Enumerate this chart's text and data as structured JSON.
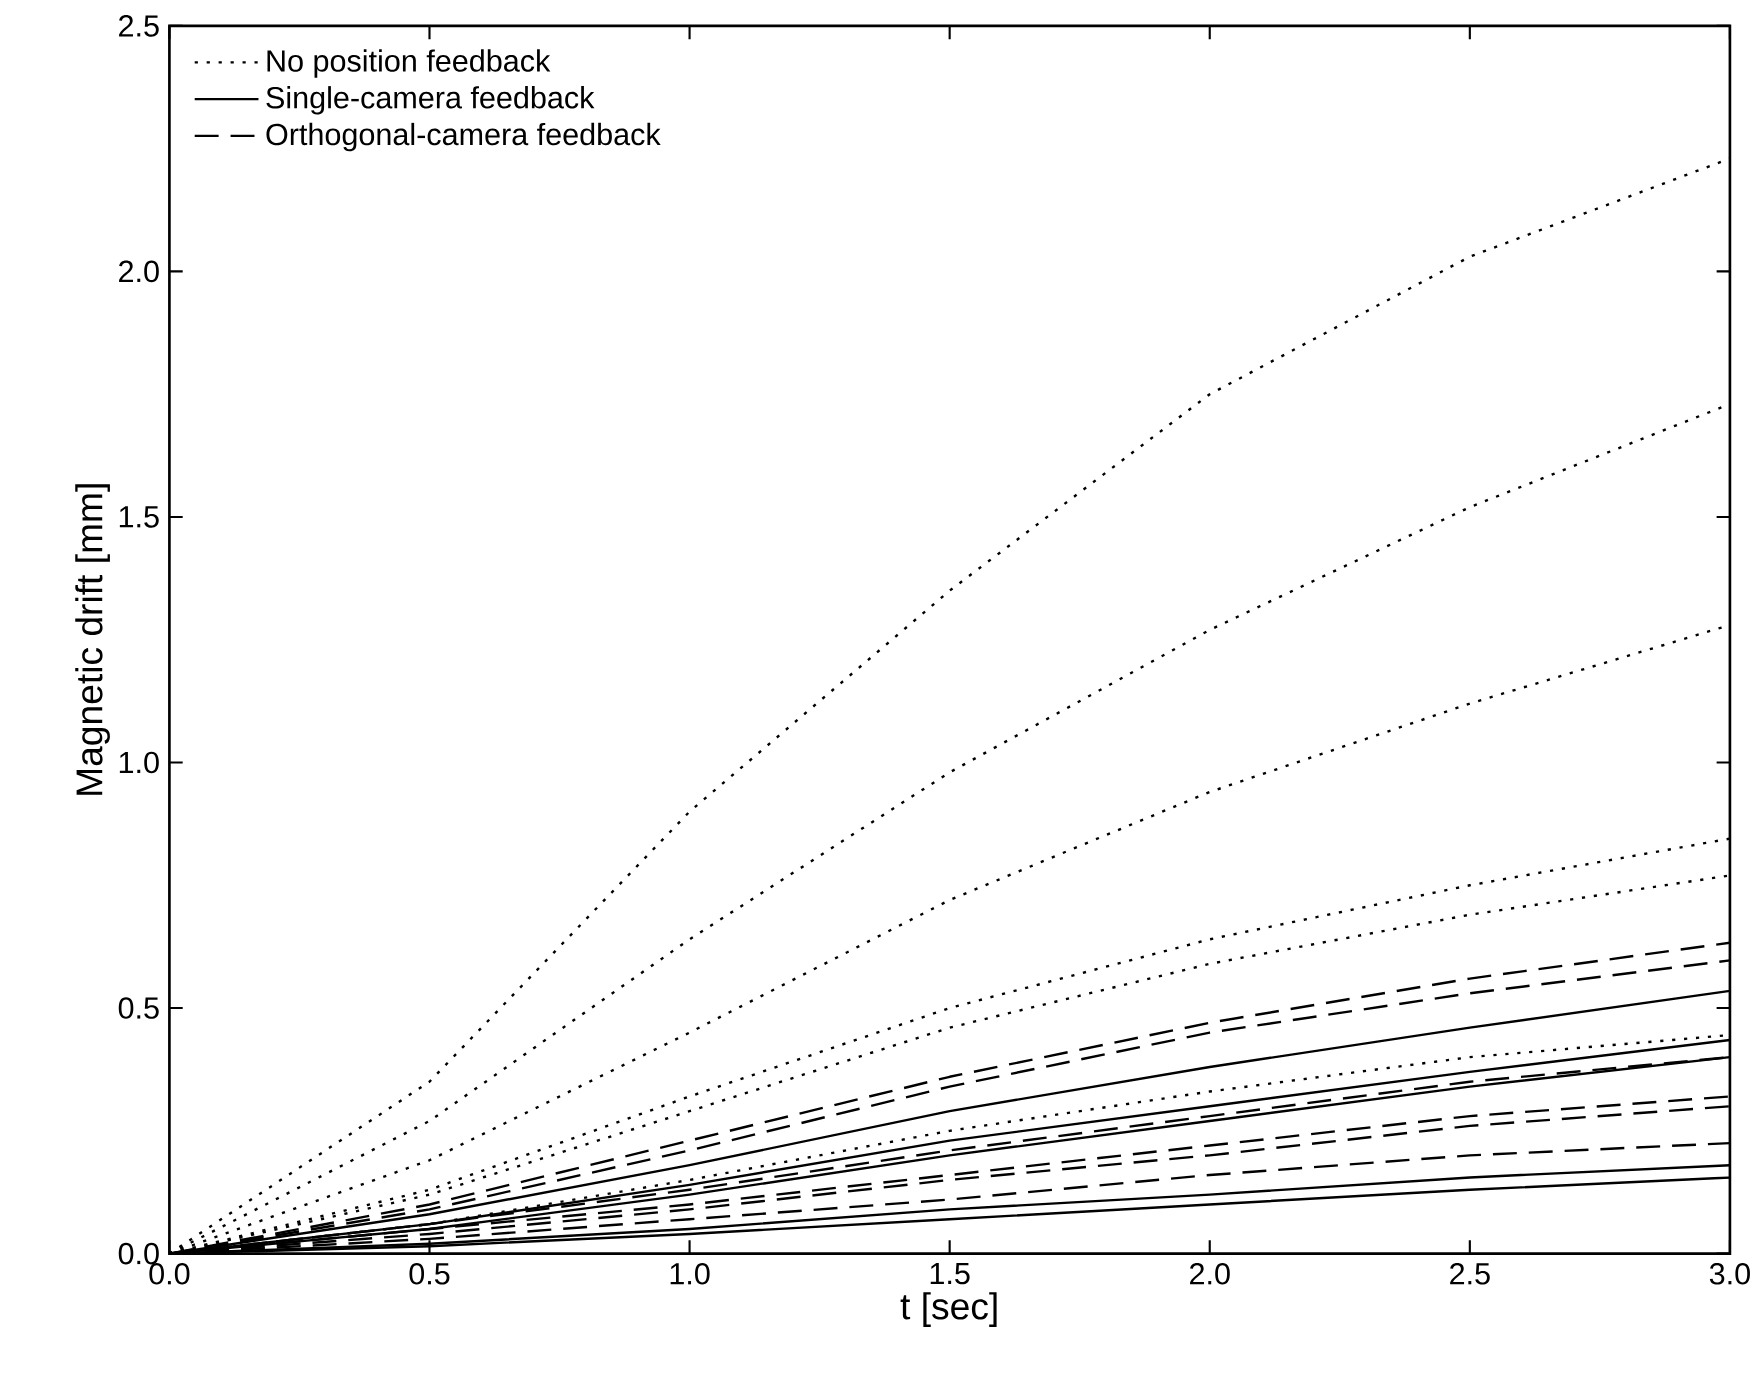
{
  "chart_data": {
    "type": "line",
    "xlabel": "t [sec]",
    "ylabel": "Magnetic drift [mm]",
    "x": [
      0,
      0.5,
      1,
      1.5,
      2,
      2.5,
      3
    ],
    "xlim": [
      0,
      3
    ],
    "ylim": [
      0,
      2.5
    ],
    "xticks": [
      {
        "value": 0,
        "label": "0.0"
      },
      0.5,
      {
        "value": 1,
        "label": "1.0"
      },
      1.5,
      {
        "value": 2,
        "label": "2.0"
      },
      2.5,
      {
        "value": 3,
        "label": "3.0"
      }
    ],
    "yticks": [
      {
        "value": 0,
        "label": "0.0"
      },
      0.5,
      {
        "value": 1,
        "label": "1.0"
      },
      1.5,
      {
        "value": 2,
        "label": "2.0"
      },
      2.5
    ],
    "grid": false,
    "legend": "top left",
    "marker": "none",
    "series": [
      {
        "name": "No position feedback",
        "color": "#000000",
        "line_style": "dotted",
        "values": [
          0,
          0.35,
          0.9,
          1.35,
          1.75,
          2.03,
          2.23
        ]
      },
      {
        "name": "Single-camera feedback",
        "color": "#000000",
        "line_style": "solid",
        "values": [
          0,
          0.08,
          0.18,
          0.29,
          0.38,
          0.46,
          0.535
        ]
      },
      {
        "name": "Orthogonal-camera feedback",
        "color": "#000000",
        "line_style": "dashed",
        "values": [
          0,
          0.1,
          0.23,
          0.36,
          0.47,
          0.56,
          0.633
        ]
      },
      {
        "color": "#000000",
        "line_style": "dotted",
        "values": [
          0,
          0.27,
          0.64,
          0.98,
          1.27,
          1.52,
          1.73
        ]
      },
      {
        "color": "#000000",
        "line_style": "dotted",
        "values": [
          0,
          0.19,
          0.45,
          0.72,
          0.94,
          1.12,
          1.28
        ]
      },
      {
        "color": "#000000",
        "line_style": "dotted",
        "values": [
          0,
          0.13,
          0.32,
          0.5,
          0.64,
          0.75,
          0.845
        ]
      },
      {
        "color": "#000000",
        "line_style": "dotted",
        "values": [
          0,
          0.12,
          0.29,
          0.46,
          0.59,
          0.69,
          0.77
        ]
      },
      {
        "color": "#000000",
        "line_style": "dotted",
        "values": [
          0,
          0.06,
          0.15,
          0.25,
          0.33,
          0.4,
          0.445
        ]
      },
      {
        "color": "#000000",
        "line_style": "solid",
        "values": [
          0,
          0.06,
          0.14,
          0.23,
          0.3,
          0.37,
          0.435
        ]
      },
      {
        "color": "#000000",
        "line_style": "solid",
        "values": [
          0,
          0.05,
          0.12,
          0.2,
          0.27,
          0.34,
          0.4
        ]
      },
      {
        "color": "#000000",
        "line_style": "solid",
        "values": [
          0,
          0.02,
          0.05,
          0.09,
          0.12,
          0.155,
          0.18
        ]
      },
      {
        "color": "#000000",
        "line_style": "solid",
        "values": [
          0,
          0.015,
          0.04,
          0.07,
          0.1,
          0.13,
          0.155
        ]
      },
      {
        "color": "#000000",
        "line_style": "dashed",
        "values": [
          0,
          0.09,
          0.21,
          0.34,
          0.45,
          0.53,
          0.597
        ]
      },
      {
        "color": "#000000",
        "line_style": "dashed",
        "values": [
          0,
          0.06,
          0.13,
          0.21,
          0.28,
          0.35,
          0.4
        ]
      },
      {
        "color": "#000000",
        "line_style": "dashed",
        "values": [
          0,
          0.05,
          0.1,
          0.16,
          0.22,
          0.28,
          0.32
        ]
      },
      {
        "color": "#000000",
        "line_style": "dashed",
        "values": [
          0,
          0.04,
          0.09,
          0.15,
          0.2,
          0.26,
          0.3
        ]
      },
      {
        "color": "#000000",
        "line_style": "dashed",
        "values": [
          0,
          0.03,
          0.07,
          0.11,
          0.16,
          0.2,
          0.225
        ]
      }
    ]
  }
}
